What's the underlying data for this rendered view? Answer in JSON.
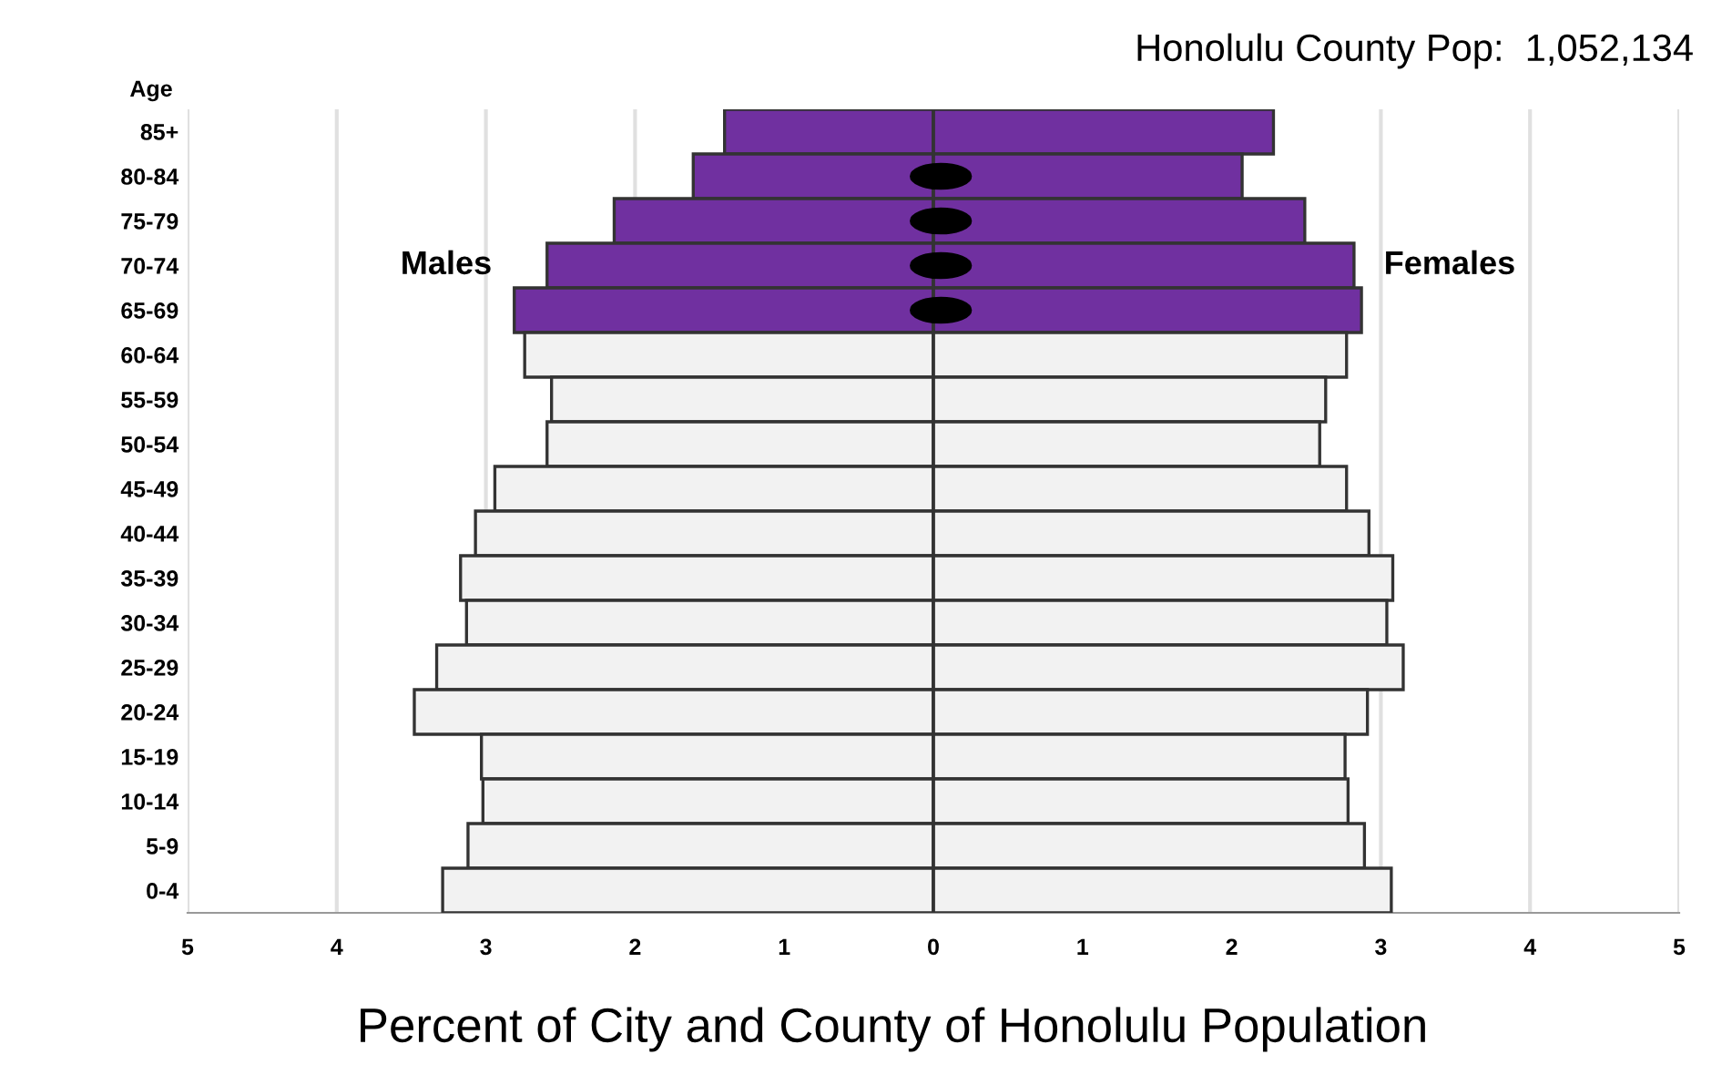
{
  "chart_data": {
    "type": "bar",
    "orientation": "horizontal",
    "title": "Honolulu County Pop:  1,052,134",
    "xlabel": "Percent of City and County of Honolulu Population",
    "ylabel": "Age",
    "categories": [
      "85+",
      "80-84",
      "75-79",
      "70-74",
      "65-69",
      "60-64",
      "55-59",
      "50-54",
      "45-49",
      "40-44",
      "35-39",
      "30-34",
      "25-29",
      "20-24",
      "15-19",
      "10-14",
      "5-9",
      "0-4"
    ],
    "series": [
      {
        "name": "Males",
        "colors": [
          "#7030a0",
          "#7030a0",
          "#7030a0",
          "#7030a0",
          "#7030a0",
          "#f2f2f2",
          "#f2f2f2",
          "#f2f2f2",
          "#f2f2f2",
          "#f2f2f2",
          "#f2f2f2",
          "#f2f2f2",
          "#f2f2f2",
          "#f2f2f2",
          "#f2f2f2",
          "#f2f2f2",
          "#f2f2f2",
          "#f2f2f2"
        ],
        "values": [
          -1.4,
          -1.61,
          -2.14,
          -2.59,
          -2.81,
          -2.74,
          -2.56,
          -2.59,
          -2.94,
          -3.07,
          -3.17,
          -3.13,
          -3.33,
          -3.48,
          -3.03,
          -3.02,
          -3.12,
          -3.29
        ]
      },
      {
        "name": "Females",
        "colors": [
          "#7030a0",
          "#7030a0",
          "#7030a0",
          "#7030a0",
          "#7030a0",
          "#f2f2f2",
          "#f2f2f2",
          "#f2f2f2",
          "#f2f2f2",
          "#f2f2f2",
          "#f2f2f2",
          "#f2f2f2",
          "#f2f2f2",
          "#f2f2f2",
          "#f2f2f2",
          "#f2f2f2",
          "#f2f2f2",
          "#f2f2f2"
        ],
        "values": [
          2.28,
          2.07,
          2.49,
          2.82,
          2.87,
          2.77,
          2.63,
          2.59,
          2.77,
          2.92,
          3.08,
          3.04,
          3.15,
          2.91,
          2.76,
          2.78,
          2.89,
          3.07
        ]
      }
    ],
    "xlim": [
      -5,
      5
    ],
    "xticks": [
      {
        "value": -5,
        "label": "5"
      },
      {
        "value": -4,
        "label": "4"
      },
      {
        "value": -3,
        "label": "3"
      },
      {
        "value": -2,
        "label": "2"
      },
      {
        "value": -1,
        "label": "1"
      },
      0,
      1,
      2,
      3,
      4,
      5
    ],
    "grid": "x",
    "stacked": true
  }
}
